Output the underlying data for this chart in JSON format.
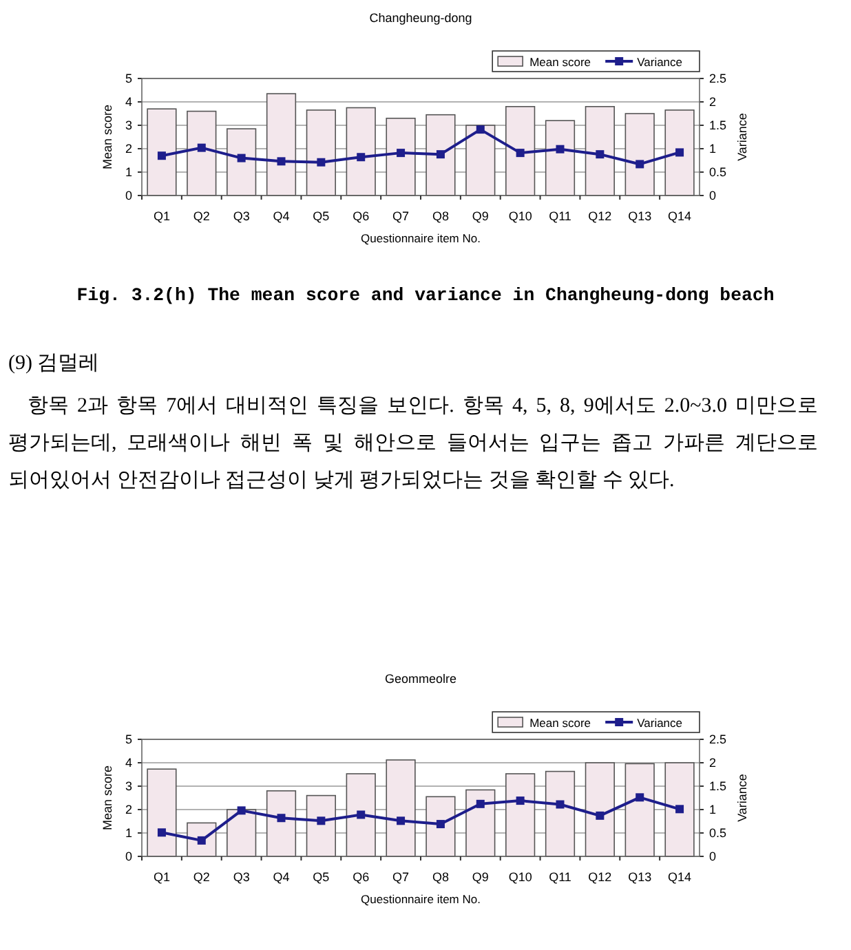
{
  "chart_data": [
    {
      "type": "bar",
      "title": "Changheung-dong",
      "xlabel": "Questionnaire item No.",
      "ylabel": "Mean score",
      "y2label": "Variance",
      "categories": [
        "Q1",
        "Q2",
        "Q3",
        "Q4",
        "Q5",
        "Q6",
        "Q7",
        "Q8",
        "Q9",
        "Q10",
        "Q11",
        "Q12",
        "Q13",
        "Q14"
      ],
      "series": [
        {
          "name": "Mean score",
          "color": "#f3e7ec",
          "values": [
            3.7,
            3.6,
            2.85,
            4.35,
            3.65,
            3.75,
            3.3,
            3.45,
            3.0,
            3.8,
            3.2,
            3.8,
            3.5,
            3.65
          ]
        },
        {
          "name": "Variance",
          "type": "line",
          "axis": "y2",
          "color": "#1e1e8c",
          "marker": "square",
          "values": [
            0.85,
            1.02,
            0.8,
            0.73,
            0.71,
            0.82,
            0.91,
            0.88,
            1.41,
            0.91,
            0.99,
            0.88,
            0.67,
            0.92
          ]
        }
      ],
      "ylim": [
        0,
        5
      ],
      "yticks": [
        0,
        1,
        2,
        3,
        4,
        5
      ],
      "y2lim": [
        0,
        2.5
      ],
      "y2ticks": [
        0,
        0.5,
        1,
        1.5,
        2,
        2.5
      ],
      "grid": "y",
      "legend": "top right",
      "annotations": [
        "Fig. 3.2(h) The mean score and variance in Changheung-dong beach"
      ]
    },
    {
      "type": "bar",
      "title": "Geommeolre",
      "xlabel": "Questionnaire item No.",
      "ylabel": "Mean score",
      "y2label": "Variance",
      "categories": [
        "Q1",
        "Q2",
        "Q3",
        "Q4",
        "Q5",
        "Q6",
        "Q7",
        "Q8",
        "Q9",
        "Q10",
        "Q11",
        "Q12",
        "Q13",
        "Q14"
      ],
      "series": [
        {
          "name": "Mean score",
          "color": "#f3e7ec",
          "values": [
            3.73,
            1.43,
            2.0,
            2.8,
            2.6,
            3.53,
            4.12,
            2.55,
            2.84,
            3.53,
            3.63,
            4.0,
            3.96,
            4.0
          ]
        },
        {
          "name": "Variance",
          "type": "line",
          "axis": "y2",
          "color": "#1e1e8c",
          "marker": "square",
          "values": [
            0.51,
            0.34,
            0.98,
            0.82,
            0.76,
            0.89,
            0.76,
            0.69,
            1.12,
            1.19,
            1.11,
            0.87,
            1.26,
            1.01
          ]
        }
      ],
      "ylim": [
        0,
        5
      ],
      "yticks": [
        0,
        1,
        2,
        3,
        4,
        5
      ],
      "y2lim": [
        0,
        2.5
      ],
      "y2ticks": [
        0,
        0.5,
        1,
        1.5,
        2,
        2.5
      ],
      "grid": "y",
      "legend": "top right",
      "annotations": [
        "(9) 검멀레",
        "항목 2과 항목 7에서 대비적인 특징을 보인다. 항목 4, 5, 8, 9에서도 2.0~3.0 미만으로 평가되는데, 모래색이나 해빈 폭 및 해안으로 들어서는 입구는 좁고 가파른 계단으로 되어있어서 안전감이나 접근성이 낮게 평가되었다는 것을 확인할 수 있다."
      ]
    }
  ]
}
